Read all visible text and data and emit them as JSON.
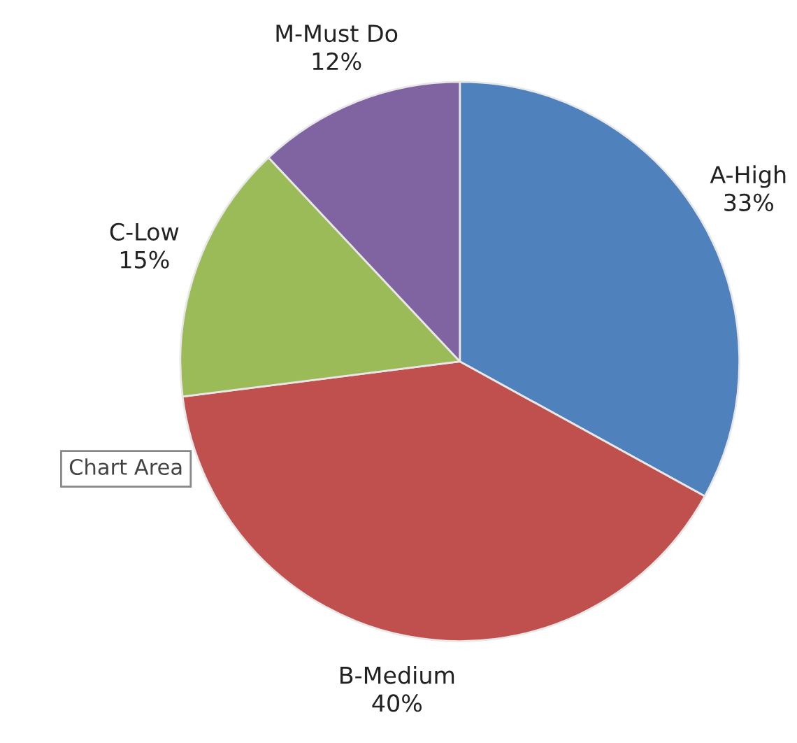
{
  "chart_data": {
    "type": "pie",
    "categories": [
      "A-High",
      "B-Medium",
      "C-Low",
      "M-Must Do"
    ],
    "values": [
      33,
      40,
      15,
      12
    ],
    "value_labels": [
      "33%",
      "40%",
      "15%",
      "12%"
    ],
    "colors": [
      "#4f81bd",
      "#c0504d",
      "#9bbb59",
      "#8064a2"
    ],
    "legend": false,
    "annotations": [
      "Chart Area"
    ]
  }
}
